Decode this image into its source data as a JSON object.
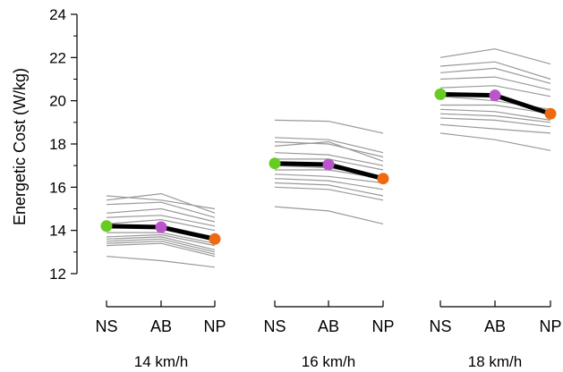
{
  "chart_data": {
    "type": "line",
    "ylabel": "Energetic Cost (W/kg)",
    "xlabel": "",
    "ylim": [
      12,
      24
    ],
    "yticks": [
      12,
      14,
      16,
      18,
      20,
      22,
      24
    ],
    "conditions": [
      "NS",
      "AB",
      "NP"
    ],
    "condition_colors": {
      "NS": "#66cc22",
      "AB": "#bb55cc",
      "NP": "#ee6a11"
    },
    "individual_line_color": "#999999",
    "mean_line_color": "#000000",
    "groups": [
      {
        "label": "14 km/h",
        "mean": [
          14.2,
          14.15,
          13.6
        ],
        "individuals": [
          [
            15.6,
            15.4,
            15.0
          ],
          [
            15.4,
            15.7,
            14.8
          ],
          [
            15.2,
            15.3,
            14.6
          ],
          [
            14.8,
            15.0,
            14.4
          ],
          [
            14.6,
            14.7,
            14.2
          ],
          [
            14.3,
            14.5,
            14.0
          ],
          [
            14.1,
            14.2,
            13.7
          ],
          [
            13.9,
            13.9,
            13.4
          ],
          [
            13.7,
            13.8,
            13.3
          ],
          [
            13.6,
            13.7,
            13.1
          ],
          [
            13.5,
            13.6,
            13.0
          ],
          [
            13.4,
            13.5,
            12.9
          ],
          [
            13.3,
            13.4,
            12.8
          ],
          [
            12.8,
            12.6,
            12.3
          ]
        ]
      },
      {
        "label": "16 km/h",
        "mean": [
          17.1,
          17.05,
          16.4
        ],
        "individuals": [
          [
            19.1,
            19.05,
            18.5
          ],
          [
            18.3,
            18.2,
            17.6
          ],
          [
            18.1,
            18.0,
            17.4
          ],
          [
            17.9,
            18.1,
            17.2
          ],
          [
            17.6,
            17.5,
            17.0
          ],
          [
            17.3,
            17.3,
            16.8
          ],
          [
            17.0,
            16.9,
            16.5
          ],
          [
            16.8,
            16.8,
            16.4
          ],
          [
            16.6,
            16.5,
            16.2
          ],
          [
            16.4,
            16.3,
            15.9
          ],
          [
            16.2,
            16.1,
            15.6
          ],
          [
            16.0,
            15.9,
            15.4
          ],
          [
            15.1,
            14.9,
            14.3
          ]
        ]
      },
      {
        "label": "18 km/h",
        "mean": [
          20.3,
          20.25,
          19.4
        ],
        "individuals": [
          [
            22.0,
            22.4,
            21.7
          ],
          [
            21.6,
            21.8,
            21.0
          ],
          [
            21.3,
            21.5,
            20.8
          ],
          [
            21.0,
            21.1,
            20.5
          ],
          [
            20.6,
            20.7,
            20.2
          ],
          [
            20.2,
            20.0,
            19.6
          ],
          [
            19.8,
            19.8,
            19.4
          ],
          [
            19.6,
            19.5,
            19.1
          ],
          [
            19.4,
            19.3,
            19.0
          ],
          [
            19.2,
            19.1,
            18.8
          ],
          [
            18.9,
            18.7,
            18.5
          ],
          [
            18.5,
            18.2,
            17.7
          ]
        ]
      }
    ]
  }
}
